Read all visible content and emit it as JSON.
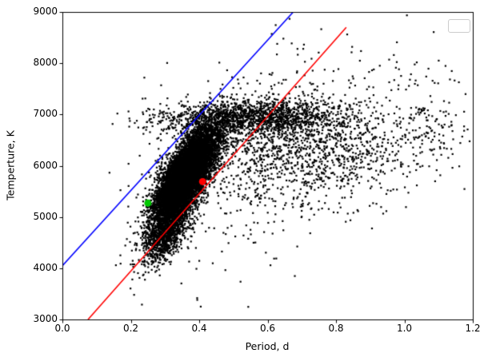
{
  "chart_data": {
    "type": "scatter",
    "title": "",
    "xlabel": "Period, d",
    "ylabel": "Temperture, K",
    "xlim": [
      0.0,
      1.2
    ],
    "ylim": [
      3000,
      9000
    ],
    "grid": false,
    "legend": {
      "visible": true,
      "position": "upper right",
      "entries": []
    },
    "xticks": [
      {
        "v": 0.0,
        "label": "0.0"
      },
      {
        "v": 0.2,
        "label": "0.2"
      },
      {
        "v": 0.4,
        "label": "0.4"
      },
      {
        "v": 0.6,
        "label": "0.6"
      },
      {
        "v": 0.8,
        "label": "0.8"
      },
      {
        "v": 1.0,
        "label": "1.0"
      },
      {
        "v": 1.2,
        "label": "1.2"
      }
    ],
    "yticks": [
      {
        "v": 3000,
        "label": "3000"
      },
      {
        "v": 4000,
        "label": "4000"
      },
      {
        "v": 5000,
        "label": "5000"
      },
      {
        "v": 6000,
        "label": "6000"
      },
      {
        "v": 7000,
        "label": "7000"
      },
      {
        "v": 8000,
        "label": "8000"
      },
      {
        "v": 9000,
        "label": "9000"
      }
    ],
    "lines": [
      {
        "name": "blue-line",
        "color": "#0000ff",
        "from": [
          0.0,
          4050
        ],
        "to": [
          0.675,
          9000
        ],
        "width": 1.6
      },
      {
        "name": "red-line",
        "color": "#ff0000",
        "from": [
          0.075,
          3000
        ],
        "to": [
          0.83,
          8700
        ],
        "width": 1.6
      }
    ],
    "highlight_points": [
      {
        "name": "green-dot",
        "x": 0.25,
        "y": 5270,
        "color": "#00c800",
        "radius": 4.5
      },
      {
        "name": "red-dot",
        "x": 0.41,
        "y": 5690,
        "color": "#ff0000",
        "radius": 4.5
      }
    ],
    "scatter": {
      "marker_color": "#000000",
      "marker_px": 2.2,
      "seed": 42,
      "xmin_clip": 0.13,
      "clusters": [
        {
          "count": 7000,
          "mean": [
            0.36,
            5750
          ],
          "sigma": [
            0.05,
            520
          ],
          "corr": 0.78
        },
        {
          "count": 4000,
          "mean": [
            0.355,
            5850
          ],
          "sigma": [
            0.035,
            350
          ],
          "corr": 0.7
        },
        {
          "count": 900,
          "mean": [
            0.305,
            4650
          ],
          "sigma": [
            0.035,
            320
          ],
          "corr": 0.65
        },
        {
          "count": 1400,
          "mean": [
            0.55,
            6950
          ],
          "sigma": [
            0.14,
            170
          ],
          "corr": 0.15
        },
        {
          "count": 1100,
          "mean": [
            0.73,
            6350
          ],
          "sigma": [
            0.17,
            480
          ],
          "corr": -0.05
        },
        {
          "count": 600,
          "mean": [
            0.55,
            6100
          ],
          "sigma": [
            0.16,
            1000
          ],
          "corr": 0.3
        },
        {
          "count": 60,
          "mean": [
            0.95,
            7600
          ],
          "sigma": [
            0.12,
            500
          ],
          "corr": 0.0
        },
        {
          "count": 90,
          "mean": [
            1.08,
            6800
          ],
          "sigma": [
            0.06,
            350
          ],
          "corr": 0.0
        }
      ]
    }
  }
}
